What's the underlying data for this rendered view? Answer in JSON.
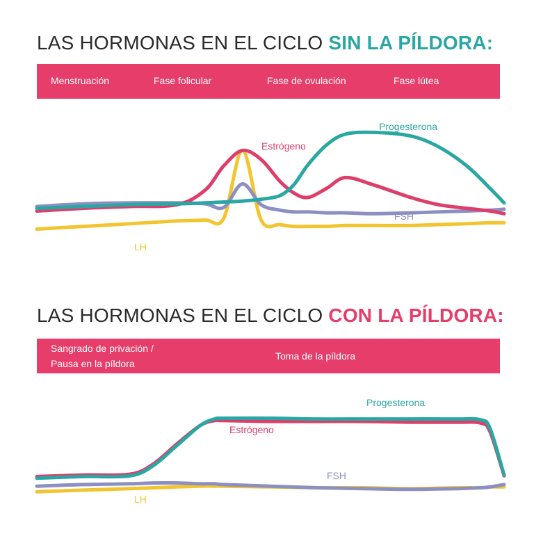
{
  "colors": {
    "accent_teal": "#2aa7a3",
    "accent_pink": "#e63d6a",
    "band": "#e63d6a",
    "estrogen": "#dd3e6b",
    "progesterone": "#2aa7a3",
    "lh": "#f2c530",
    "fsh": "#8c8fc2"
  },
  "section1": {
    "title_prefix": "LAS HORMONAS EN EL CICLO ",
    "title_accent": "SIN LA PÍLDORA:",
    "phases": [
      "Menstruación",
      "Fase folicular",
      "Fase de ovulación",
      "Fase lútea"
    ]
  },
  "section2": {
    "title_prefix": "LAS HORMONAS EN EL CICLO ",
    "title_accent": "CON LA PÍLDORA:",
    "phase_left_line1": "Sangrado de privación /",
    "phase_left_line2": "Pausa en la píldora",
    "phase_main": "Toma de la píldora"
  },
  "chart_data": [
    {
      "type": "line",
      "title": "LAS HORMONAS EN EL CICLO SIN LA PÍLDORA:",
      "xlabel": "",
      "ylabel": "",
      "x": [
        0,
        10,
        20,
        30,
        36,
        40,
        44,
        48,
        52,
        55,
        58,
        62,
        66,
        72,
        80,
        86,
        92,
        97,
        100
      ],
      "xlim": [
        0,
        100
      ],
      "ylim": [
        0,
        100
      ],
      "grid": false,
      "legend": "inline labels",
      "series": [
        {
          "name": "Estrógeno",
          "values": [
            5,
            8,
            10,
            12,
            28,
            55,
            72,
            62,
            38,
            25,
            20,
            30,
            42,
            34,
            20,
            12,
            8,
            5,
            2
          ]
        },
        {
          "name": "Progesterona",
          "values": [
            8,
            10,
            12,
            13,
            14,
            15,
            16,
            18,
            22,
            34,
            56,
            78,
            90,
            92,
            88,
            76,
            55,
            30,
            14
          ]
        },
        {
          "name": "LH",
          "values": [
            -15,
            -12,
            -9,
            -6,
            -5,
            -3,
            72,
            -5,
            -10,
            -12,
            -12,
            -12,
            -11,
            -11,
            -11,
            -10,
            -9,
            -8,
            -8
          ]
        },
        {
          "name": "FSH",
          "values": [
            10,
            13,
            14,
            14,
            13,
            9,
            35,
            12,
            6,
            4,
            4,
            3,
            3,
            2,
            3,
            4,
            5,
            6,
            7
          ]
        }
      ]
    },
    {
      "type": "line",
      "title": "LAS HORMONAS EN EL CICLO CON LA PÍLDORA:",
      "xlabel": "",
      "ylabel": "",
      "x": [
        0,
        10,
        20,
        25,
        30,
        35,
        38,
        40,
        50,
        60,
        70,
        80,
        90,
        95,
        97,
        100
      ],
      "xlim": [
        0,
        100
      ],
      "ylim": [
        0,
        100
      ],
      "grid": false,
      "legend": "inline labels",
      "series": [
        {
          "name": "Estrógeno",
          "values": [
            4,
            6,
            7,
            20,
            45,
            68,
            74,
            74,
            73,
            73,
            73,
            72,
            72,
            71,
            60,
            5
          ]
        },
        {
          "name": "Progesterona",
          "values": [
            2,
            4,
            5,
            18,
            43,
            68,
            76,
            77,
            77,
            76,
            76,
            76,
            76,
            75,
            64,
            6
          ]
        },
        {
          "name": "LH",
          "values": [
            -15,
            -13,
            -11,
            -10,
            -9,
            -8,
            -8,
            -8,
            -9,
            -10,
            -10,
            -11,
            -10,
            -10,
            -9,
            -9
          ]
        },
        {
          "name": "FSH",
          "values": [
            -8,
            -6,
            -5,
            -4,
            -4,
            -5,
            -5,
            -6,
            -8,
            -10,
            -11,
            -12,
            -11,
            -10,
            -9,
            -6
          ]
        }
      ]
    }
  ]
}
